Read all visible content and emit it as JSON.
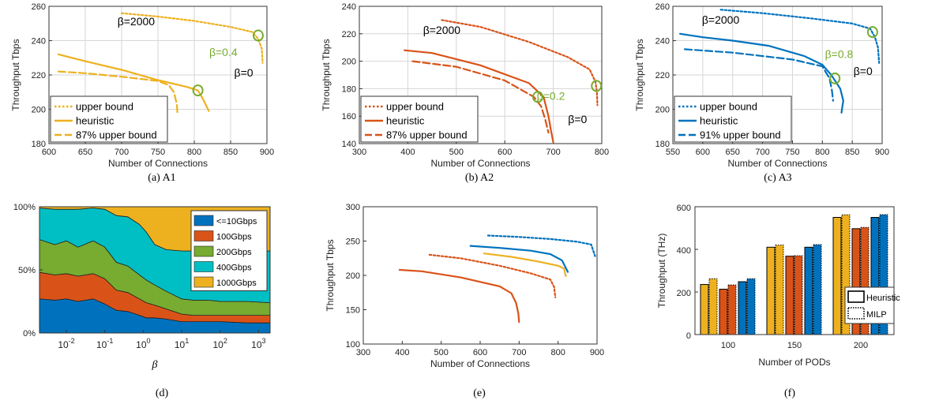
{
  "colors": {
    "A1": "#EDB120",
    "A2": "#D95319",
    "A3": "#0072BD",
    "annotation_green": "#77AC30",
    "d_bands": [
      "#0072BD",
      "#D95319",
      "#77AC30",
      "#00BFC4",
      "#EDB120"
    ]
  },
  "chart_data": [
    {
      "id": "a",
      "type": "line",
      "caption": "(a) A1",
      "xlabel": "Number of Connections",
      "ylabel": "Throughput Tbps",
      "xlim": [
        600,
        900
      ],
      "ylim": [
        180,
        260
      ],
      "xticks": [
        600,
        650,
        700,
        750,
        800,
        850,
        900
      ],
      "yticks": [
        180,
        200,
        220,
        240,
        260
      ],
      "grid": true,
      "legend": [
        "upper bound",
        "heuristic",
        "87% upper bound"
      ],
      "legend_position": "bottom-left",
      "series": [
        {
          "name": "upper bound",
          "style": "dotted",
          "color": "#EDB120",
          "x": [
            700,
            750,
            800,
            850,
            880,
            888,
            893,
            894
          ],
          "y": [
            256,
            254,
            251.5,
            248,
            245,
            241,
            235,
            227
          ]
        },
        {
          "name": "heuristic",
          "style": "solid",
          "color": "#EDB120",
          "x": [
            613,
            650,
            700,
            750,
            790,
            805,
            812,
            820
          ],
          "y": [
            232,
            228,
            223,
            217,
            213,
            211,
            206,
            199
          ]
        },
        {
          "name": "87% upper bound",
          "style": "dashed",
          "color": "#EDB120",
          "x": [
            613,
            650,
            700,
            750,
            765,
            772,
            776,
            777
          ],
          "y": [
            222,
            221,
            219,
            216.5,
            214,
            210,
            203,
            197
          ]
        }
      ],
      "annotations": [
        {
          "text": "β=2000",
          "x": 720,
          "y": 249,
          "color": "#000000"
        },
        {
          "text": "β=0.4",
          "x": 840,
          "y": 231,
          "color": "#77AC30"
        },
        {
          "text": "β=0",
          "x": 868,
          "y": 219,
          "color": "#000000"
        }
      ],
      "circles": [
        {
          "x": 888,
          "y": 243
        },
        {
          "x": 805,
          "y": 211
        }
      ]
    },
    {
      "id": "b",
      "type": "line",
      "caption": "(b) A2",
      "xlabel": "Number of Connections",
      "ylabel": "Throughput Tbps",
      "xlim": [
        300,
        800
      ],
      "ylim": [
        140,
        240
      ],
      "xticks": [
        300,
        400,
        500,
        600,
        700,
        800
      ],
      "yticks": [
        140,
        160,
        180,
        200,
        220,
        240
      ],
      "grid": true,
      "legend": [
        "upper bound",
        "heuristic",
        "87% upper bound"
      ],
      "legend_position": "bottom-left",
      "series": [
        {
          "name": "upper bound",
          "style": "dotted",
          "color": "#D95319",
          "x": [
            470,
            550,
            650,
            730,
            775,
            787,
            790,
            791
          ],
          "y": [
            230,
            225,
            214,
            203,
            194,
            185,
            177,
            168
          ]
        },
        {
          "name": "heuristic",
          "style": "solid",
          "color": "#D95319",
          "x": [
            393,
            450,
            550,
            650,
            680,
            690,
            695,
            700
          ],
          "y": [
            208,
            206,
            197,
            184,
            174,
            160,
            150,
            141
          ]
        },
        {
          "name": "87% upper bound",
          "style": "dashed",
          "color": "#D95319",
          "x": [
            410,
            500,
            600,
            660,
            675,
            683,
            690
          ],
          "y": [
            200,
            196,
            186,
            174,
            167,
            158,
            148
          ]
        }
      ],
      "annotations": [
        {
          "text": "β=2000",
          "x": 470,
          "y": 220,
          "color": "#000000"
        },
        {
          "text": "β=0.2",
          "x": 695,
          "y": 172,
          "color": "#77AC30"
        },
        {
          "text": "β=0",
          "x": 750,
          "y": 155,
          "color": "#000000"
        }
      ],
      "circles": [
        {
          "x": 789,
          "y": 182
        },
        {
          "x": 668,
          "y": 174
        }
      ]
    },
    {
      "id": "c",
      "type": "line",
      "caption": "(c) A3",
      "xlabel": "Number of Connections",
      "ylabel": "Throughput Tbps",
      "xlim": [
        550,
        900
      ],
      "ylim": [
        180,
        260
      ],
      "xticks": [
        550,
        600,
        650,
        700,
        750,
        800,
        850,
        900
      ],
      "yticks": [
        180,
        200,
        220,
        240,
        260
      ],
      "grid": true,
      "legend": [
        "upper bound",
        "heuristic",
        "91% upper bound"
      ],
      "legend_position": "bottom-left",
      "series": [
        {
          "name": "upper bound",
          "style": "dotted",
          "color": "#0072BD",
          "x": [
            630,
            700,
            780,
            850,
            880,
            888,
            893,
            895
          ],
          "y": [
            258,
            256,
            253,
            250,
            247,
            242,
            236,
            227
          ]
        },
        {
          "name": "heuristic",
          "style": "solid",
          "color": "#0072BD",
          "x": [
            562,
            600,
            650,
            710,
            770,
            800,
            815,
            830,
            835,
            832
          ],
          "y": [
            244,
            242,
            240,
            237,
            231,
            226,
            220,
            212,
            205,
            198
          ]
        },
        {
          "name": "91% upper bound",
          "style": "dashed",
          "color": "#0072BD",
          "x": [
            570,
            650,
            750,
            800,
            812,
            816,
            818
          ],
          "y": [
            235,
            233,
            229,
            225,
            218,
            211,
            205
          ]
        }
      ],
      "annotations": [
        {
          "text": "β=2000",
          "x": 630,
          "y": 250,
          "color": "#000000"
        },
        {
          "text": "β=0.8",
          "x": 828,
          "y": 230,
          "color": "#77AC30"
        },
        {
          "text": "β=0",
          "x": 868,
          "y": 220,
          "color": "#000000"
        }
      ],
      "circles": [
        {
          "x": 884,
          "y": 245
        },
        {
          "x": 821,
          "y": 218
        }
      ]
    },
    {
      "id": "d",
      "type": "area",
      "caption": "(d)",
      "xlabel": "β",
      "ylabel": "",
      "xscale": "log",
      "xlim": [
        0.002,
        2000
      ],
      "ylim": [
        0,
        100
      ],
      "xtick_labels": [
        "10^-2",
        "10^-1",
        "10^0",
        "10^1",
        "10^2",
        "10^3"
      ],
      "xtick_values": [
        0.01,
        0.1,
        1,
        10,
        100,
        1000
      ],
      "ytick_labels": [
        "0%",
        "50%",
        "100%"
      ],
      "ytick_values": [
        0,
        50,
        100
      ],
      "legend": [
        "<=10Gbps",
        "100Gbps",
        "200Gbps",
        "400Gbps",
        "1000Gbps"
      ],
      "legend_position": "top-right",
      "x": [
        0.002,
        0.005,
        0.01,
        0.02,
        0.05,
        0.1,
        0.2,
        0.4,
        0.8,
        1.2,
        2,
        4,
        10,
        20,
        50,
        100,
        500,
        2000
      ],
      "cumulative": [
        {
          "name": "<=10Gbps",
          "values": [
            27,
            26,
            27,
            25,
            27,
            23,
            18,
            17,
            14,
            12,
            12,
            11,
            9,
            9,
            9,
            9,
            8,
            8
          ]
        },
        {
          "name": "100Gbps",
          "values": [
            48,
            46,
            47,
            45,
            47,
            43,
            34,
            32,
            27,
            24,
            22,
            19,
            15,
            14,
            14,
            14,
            14,
            14
          ]
        },
        {
          "name": "200Gbps",
          "values": [
            74,
            70,
            73,
            68,
            73,
            68,
            56,
            53,
            46,
            42,
            38,
            33,
            27,
            26,
            26,
            25,
            25,
            24
          ]
        },
        {
          "name": "400Gbps",
          "values": [
            99,
            98,
            98,
            98,
            99,
            98,
            93,
            92,
            86,
            80,
            70,
            66,
            65,
            65,
            65,
            65,
            65,
            65
          ]
        },
        {
          "name": "1000Gbps",
          "values": [
            100,
            100,
            100,
            100,
            100,
            100,
            100,
            100,
            100,
            100,
            100,
            100,
            100,
            100,
            100,
            100,
            100,
            100
          ]
        }
      ]
    },
    {
      "id": "e",
      "type": "line",
      "caption": "(e)",
      "xlabel": "Number of Connections",
      "ylabel": "Throughput Tbps",
      "xlim": [
        300,
        900
      ],
      "ylim": [
        100,
        300
      ],
      "xticks": [
        300,
        400,
        500,
        600,
        700,
        800,
        900
      ],
      "yticks": [
        100,
        150,
        200,
        250,
        300
      ],
      "grid": false,
      "series": [
        {
          "style": "dotted",
          "color": "#0072BD",
          "x": [
            620,
            700,
            780,
            850,
            885,
            895
          ],
          "y": [
            258,
            256,
            253,
            249,
            245,
            228
          ]
        },
        {
          "style": "solid",
          "color": "#0072BD",
          "x": [
            575,
            650,
            730,
            780,
            810,
            825
          ],
          "y": [
            243,
            240,
            236,
            231,
            222,
            205
          ]
        },
        {
          "style": "solid",
          "color": "#EDB120",
          "x": [
            610,
            680,
            750,
            800,
            815,
            820
          ],
          "y": [
            232,
            227,
            220,
            214,
            210,
            199
          ]
        },
        {
          "style": "dotted",
          "color": "#D95319",
          "x": [
            470,
            550,
            650,
            730,
            780,
            790,
            793
          ],
          "y": [
            230,
            225,
            214,
            203,
            194,
            183,
            168
          ]
        },
        {
          "style": "solid",
          "color": "#D95319",
          "x": [
            393,
            450,
            550,
            650,
            680,
            692,
            698,
            700
          ],
          "y": [
            208,
            206,
            197,
            184,
            174,
            160,
            145,
            132
          ]
        }
      ]
    },
    {
      "id": "f",
      "type": "bar",
      "caption": "(f)",
      "xlabel": "Number of PODs",
      "ylabel": "Throughput (THz)",
      "categories": [
        "100",
        "150",
        "200"
      ],
      "ylim": [
        0,
        600
      ],
      "yticks": [
        0,
        200,
        400,
        600
      ],
      "legend": [
        "Heuristic",
        "MILP"
      ],
      "legend_position": "bottom-right",
      "series": [
        {
          "architecture": "A1",
          "color": "#EDB120",
          "heuristic": [
            235,
            410,
            550
          ],
          "milp": [
            262,
            420,
            562
          ]
        },
        {
          "architecture": "A2",
          "color": "#D95319",
          "heuristic": [
            213,
            368,
            497
          ],
          "milp": [
            233,
            370,
            503
          ]
        },
        {
          "architecture": "A3",
          "color": "#0072BD",
          "heuristic": [
            248,
            410,
            550
          ],
          "milp": [
            262,
            422,
            563
          ]
        }
      ]
    }
  ]
}
